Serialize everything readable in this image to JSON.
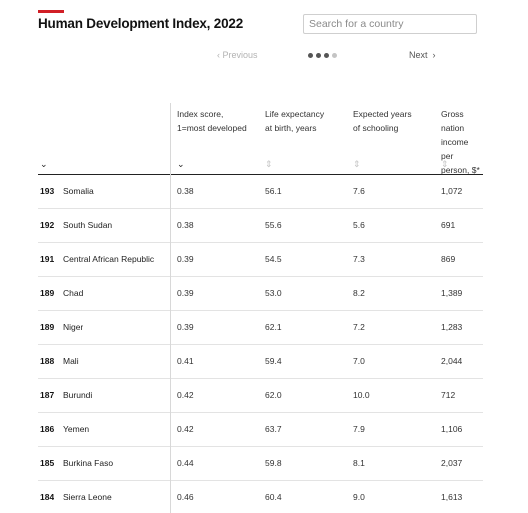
{
  "header": {
    "title": "Human Development Index, 2022"
  },
  "search": {
    "placeholder": "Search for a country"
  },
  "pagination": {
    "previous_label": "Previous",
    "next_label": "Next",
    "total_pages": 4,
    "active_dots": 3
  },
  "table": {
    "columns": [
      {
        "label": "",
        "sort": "desc"
      },
      {
        "label": "Index score,\n1=most developed",
        "sort": "desc"
      },
      {
        "label": "Life expectancy\nat birth, years",
        "sort": "none"
      },
      {
        "label": "Expected years\nof schooling",
        "sort": "none"
      },
      {
        "label": "Gross nation\nincome per\nperson, $*",
        "sort": "none"
      }
    ],
    "rows": [
      {
        "rank": "193",
        "country": "Somalia",
        "index": "0.38",
        "life": "56.1",
        "school": "7.6",
        "gni": "1,072"
      },
      {
        "rank": "192",
        "country": "South Sudan",
        "index": "0.38",
        "life": "55.6",
        "school": "5.6",
        "gni": "691"
      },
      {
        "rank": "191",
        "country": "Central African Republic",
        "index": "0.39",
        "life": "54.5",
        "school": "7.3",
        "gni": "869"
      },
      {
        "rank": "189",
        "country": "Chad",
        "index": "0.39",
        "life": "53.0",
        "school": "8.2",
        "gni": "1,389"
      },
      {
        "rank": "189",
        "country": "Niger",
        "index": "0.39",
        "life": "62.1",
        "school": "7.2",
        "gni": "1,283"
      },
      {
        "rank": "188",
        "country": "Mali",
        "index": "0.41",
        "life": "59.4",
        "school": "7.0",
        "gni": "2,044"
      },
      {
        "rank": "187",
        "country": "Burundi",
        "index": "0.42",
        "life": "62.0",
        "school": "10.0",
        "gni": "712"
      },
      {
        "rank": "186",
        "country": "Yemen",
        "index": "0.42",
        "life": "63.7",
        "school": "7.9",
        "gni": "1,106"
      },
      {
        "rank": "185",
        "country": "Burkina Faso",
        "index": "0.44",
        "life": "59.8",
        "school": "8.1",
        "gni": "2,037"
      },
      {
        "rank": "184",
        "country": "Sierra Leone",
        "index": "0.46",
        "life": "60.4",
        "school": "9.0",
        "gni": "1,613"
      }
    ]
  },
  "icons": {
    "sort_desc": "chevron-down-icon",
    "sort_none": "sort-updown-icon",
    "prev": "chevron-left-icon",
    "next": "chevron-right-icon"
  }
}
